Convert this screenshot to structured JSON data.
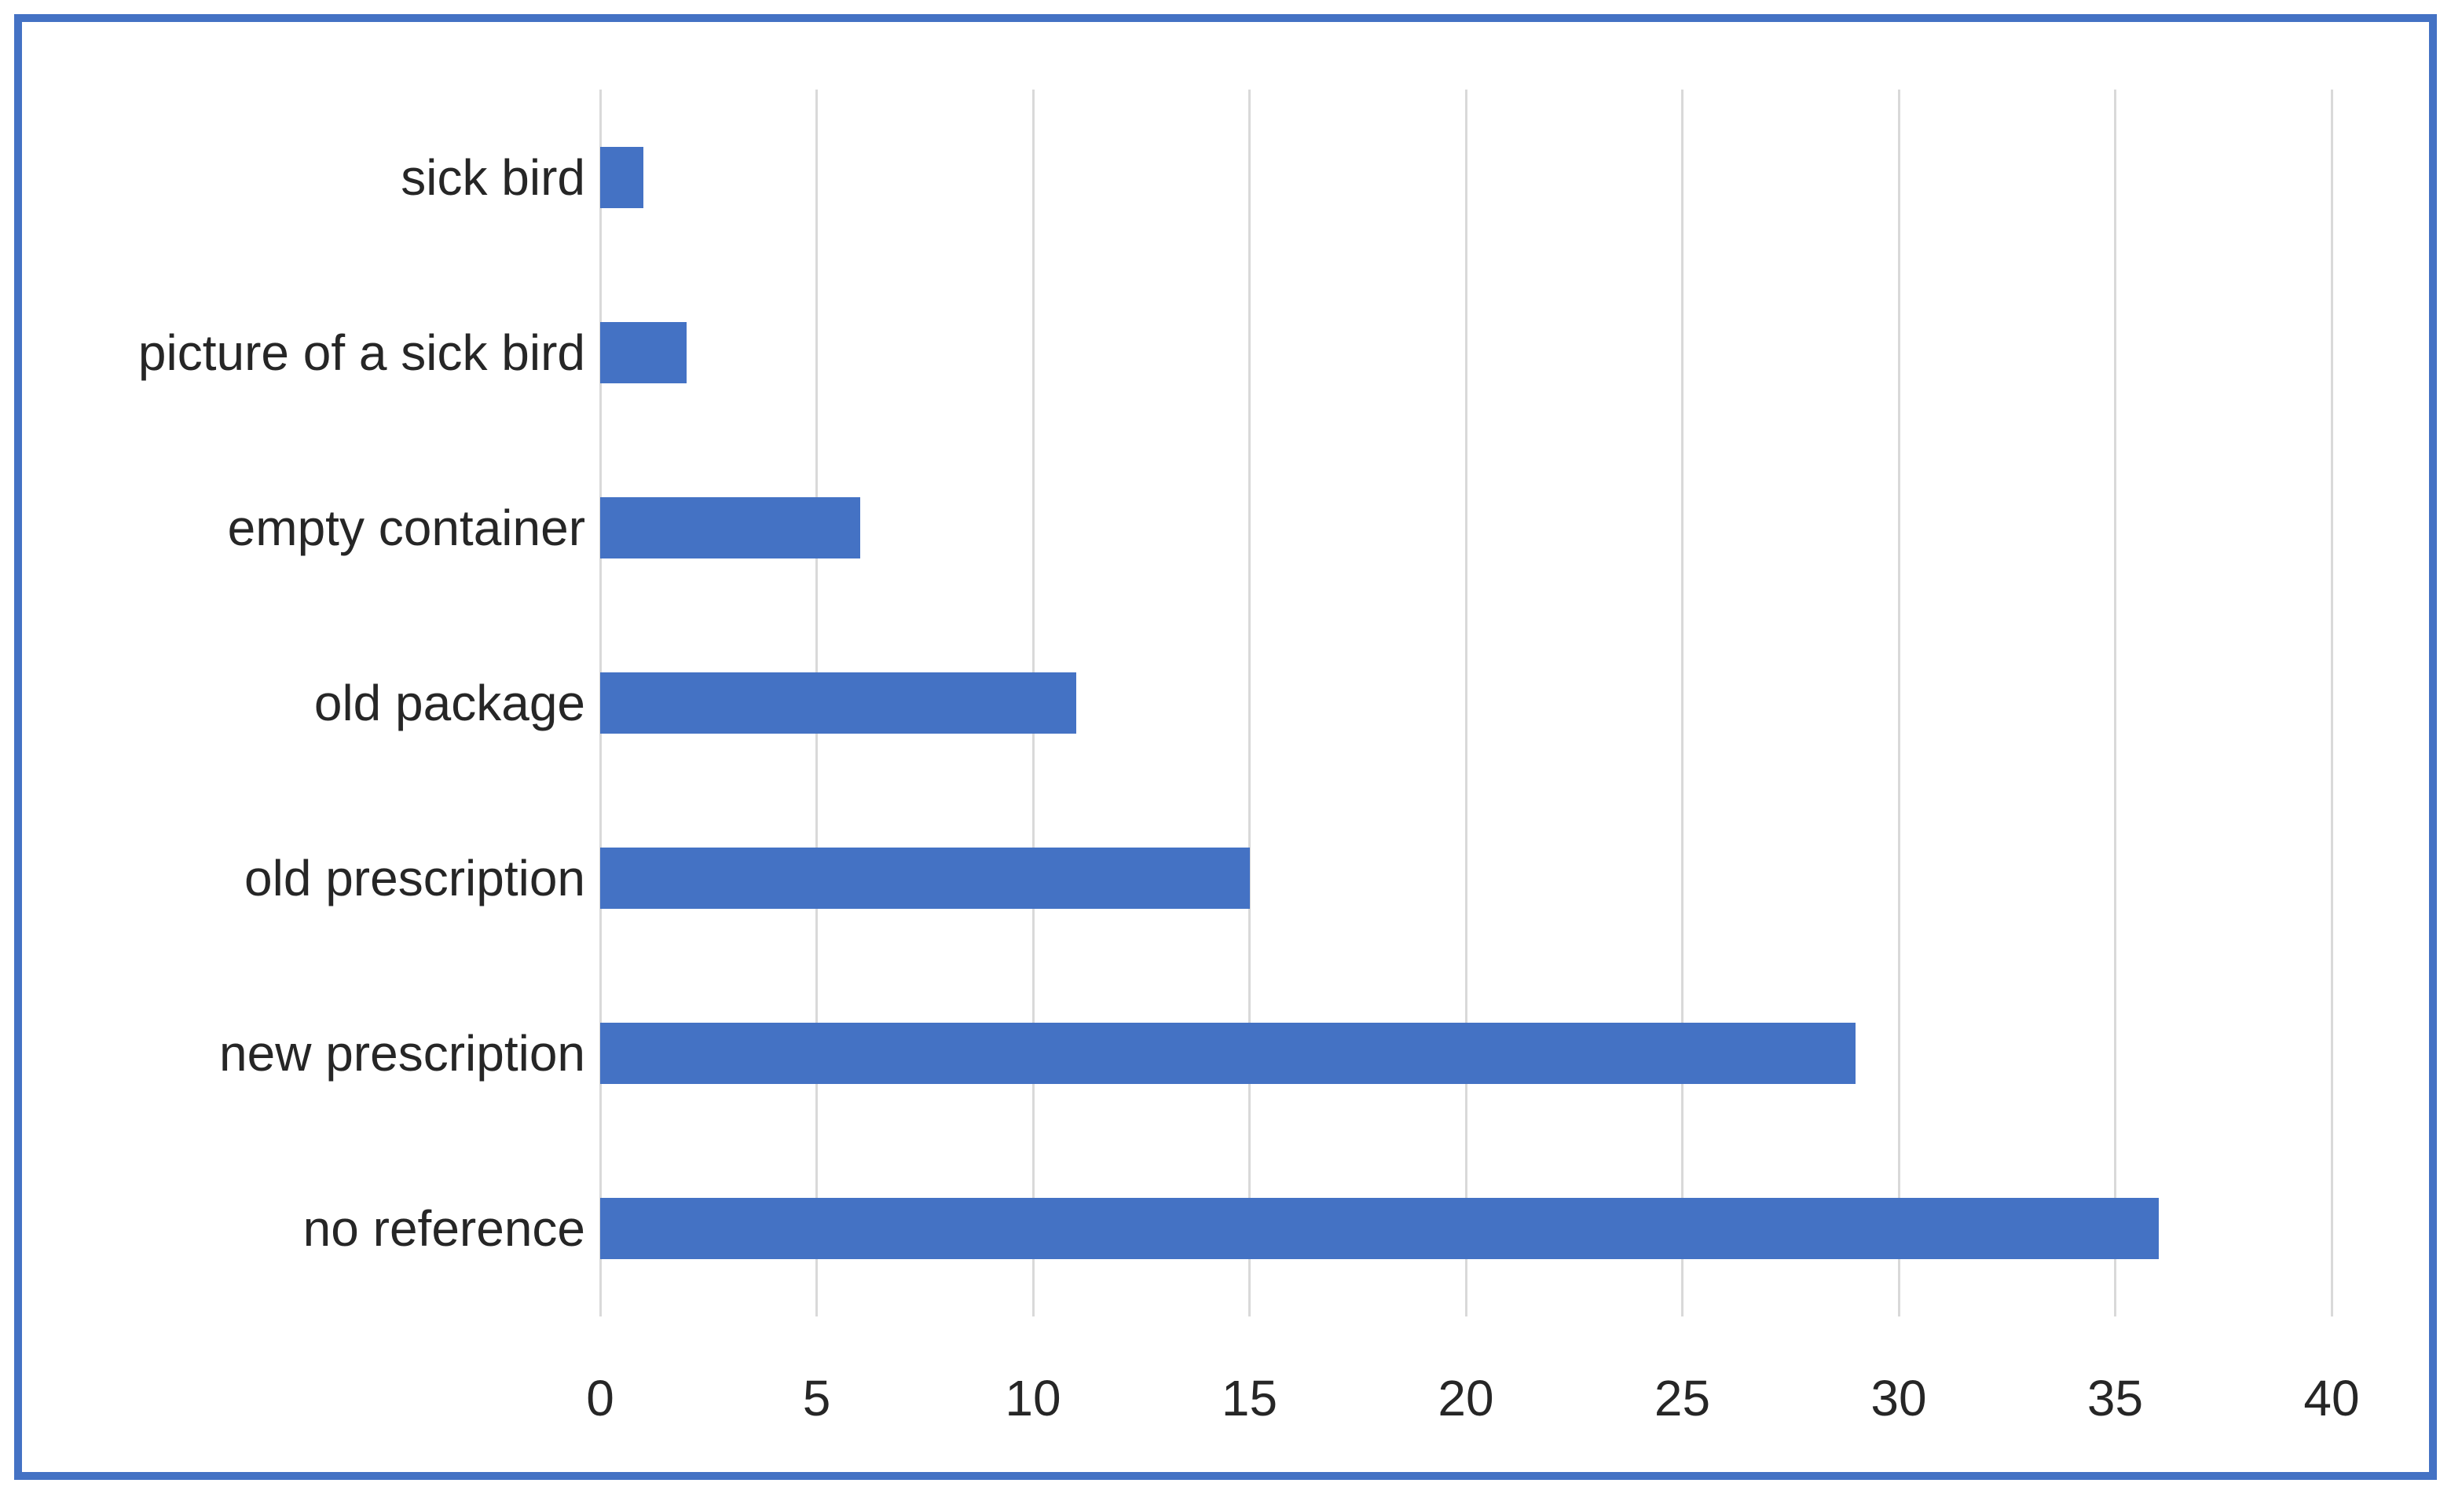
{
  "chart_data": {
    "type": "bar",
    "orientation": "horizontal",
    "title": "",
    "xlabel": "",
    "ylabel": "",
    "categories": [
      "sick bird",
      "picture of a sick bird",
      "empty container",
      "old package",
      "old prescription",
      "new prescription",
      "no reference"
    ],
    "values": [
      1,
      2,
      6,
      11,
      15,
      29,
      36
    ],
    "xlim": [
      0,
      40
    ],
    "xticks": [
      0,
      5,
      10,
      15,
      20,
      25,
      30,
      35,
      40
    ],
    "grid": true,
    "legend": false,
    "colors": {
      "bar": "#4472C4",
      "gridline": "#D9D9D9",
      "text": "#262626",
      "frame_border": "#4472C4",
      "background": "#ffffff"
    }
  }
}
